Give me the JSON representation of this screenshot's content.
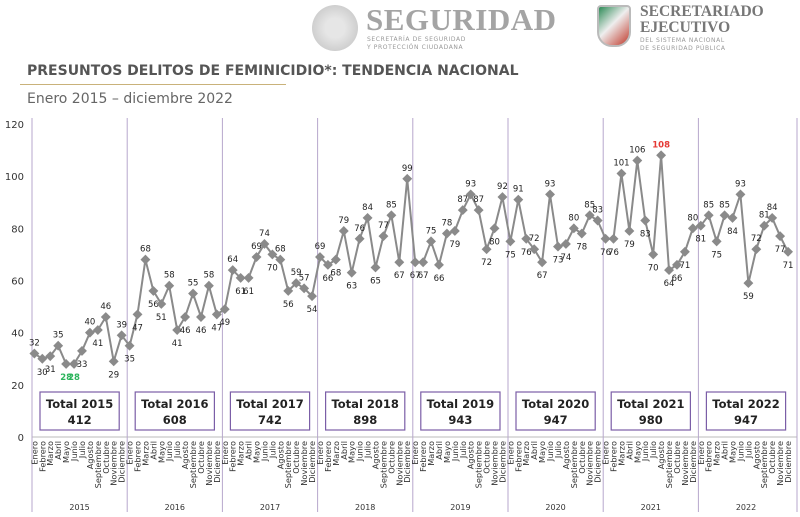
{
  "header": {
    "seguridad_logo": {
      "title": "SEGURIDAD",
      "subtitle_line1": "SECRETARÍA DE SEGURIDAD",
      "subtitle_line2": "Y PROTECCIÓN CIUDADANA"
    },
    "sesnsp_logo": {
      "title_line1": "SECRETARIADO",
      "title_line2": "EJECUTIVO",
      "subtitle_line1": "DEL SISTEMA NACIONAL",
      "subtitle_line2": "DE SEGURIDAD PÚBLICA"
    },
    "title": "PRESUNTOS DELITOS DE FEMINICIDIO*: TENDENCIA NACIONAL",
    "subtitle": "Enero 2015 – diciembre 2022"
  },
  "chart_data": {
    "type": "line",
    "ylim": [
      0,
      120
    ],
    "yticks": [
      0,
      20,
      40,
      60,
      80,
      100,
      120
    ],
    "grid": false,
    "line_color": "#8a8a8a",
    "separator_color": "#b7a7cc",
    "total_box_color": "#7b5ea7",
    "months": [
      "Enero",
      "Febrero",
      "Marzo",
      "Abril",
      "Mayo",
      "Junio",
      "Julio",
      "Agosto",
      "Septiembre",
      "Octubre",
      "Noviembre",
      "Diciembre"
    ],
    "years": [
      {
        "year": "2015",
        "total_label": "Total 2015",
        "total": "412",
        "values": [
          32,
          30,
          31,
          35,
          28,
          28,
          33,
          40,
          41,
          46,
          29,
          39
        ]
      },
      {
        "year": "2016",
        "total_label": "Total 2016",
        "total": "608",
        "values": [
          35,
          47,
          68,
          56,
          51,
          58,
          41,
          46,
          55,
          46,
          58,
          47
        ]
      },
      {
        "year": "2017",
        "total_label": "Total 2017",
        "total": "742",
        "values": [
          49,
          64,
          61,
          61,
          69,
          74,
          70,
          68,
          56,
          59,
          57,
          54
        ]
      },
      {
        "year": "2018",
        "total_label": "Total 2018",
        "total": "898",
        "values": [
          69,
          66,
          68,
          79,
          63,
          76,
          84,
          65,
          77,
          85,
          67,
          99
        ]
      },
      {
        "year": "2019",
        "total_label": "Total 2019",
        "total": "943",
        "values": [
          67,
          67,
          75,
          66,
          78,
          79,
          87,
          93,
          87,
          72,
          80,
          92
        ]
      },
      {
        "year": "2020",
        "total_label": "Total 2020",
        "total": "947",
        "values": [
          75,
          91,
          76,
          72,
          67,
          93,
          73,
          74,
          80,
          78,
          85,
          83
        ]
      },
      {
        "year": "2021",
        "total_label": "Total 2021",
        "total": "980",
        "values": [
          76,
          76,
          101,
          79,
          106,
          83,
          70,
          108,
          64,
          66,
          71,
          80
        ]
      },
      {
        "year": "2022",
        "total_label": "Total 2022",
        "total": "947",
        "values": [
          81,
          85,
          75,
          85,
          84,
          93,
          59,
          72,
          81,
          84,
          77,
          71
        ]
      }
    ],
    "highlights": [
      {
        "year": "2015",
        "month": "Mayo",
        "value": 28,
        "color": "#2db55d",
        "meaning": "minimum"
      },
      {
        "year": "2015",
        "month": "Junio",
        "value": 28,
        "color": "#2db55d",
        "meaning": "minimum"
      },
      {
        "year": "2021",
        "month": "Agosto",
        "value": 108,
        "color": "#e53935",
        "meaning": "maximum"
      }
    ]
  }
}
